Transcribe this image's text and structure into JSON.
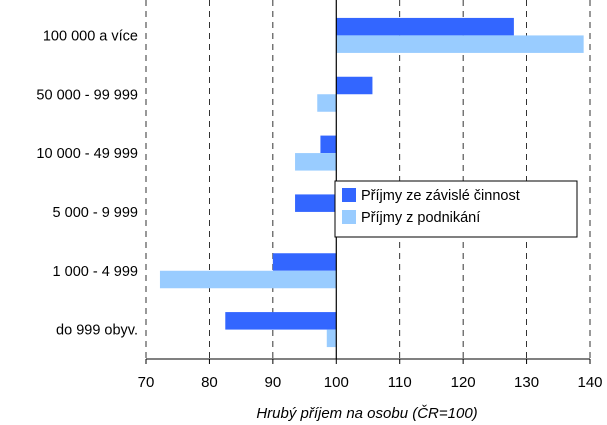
{
  "chart_data": {
    "type": "bar",
    "orientation": "horizontal",
    "categories": [
      "100 000 a více",
      "50 000 - 99 999",
      "10 000 - 49 999",
      "5 000 - 9 999",
      "1 000 - 4 999",
      "do 999 obyv."
    ],
    "series": [
      {
        "name": "Příjmy ze závislé činnost",
        "color": "#3366ff",
        "values": [
          128,
          105.7,
          97.5,
          93.5,
          90,
          82.5
        ]
      },
      {
        "name": "Příjmy z podnikání",
        "color": "#99ccff",
        "values": [
          139,
          97,
          93.5,
          100,
          72.2,
          98.5
        ]
      }
    ],
    "baseline": 100,
    "xlim": [
      70,
      140
    ],
    "xticks": [
      "70",
      "80",
      "90",
      "100",
      "110",
      "120",
      "130",
      "140"
    ],
    "xlabel": "Hrubý příjem na osobu (ČR=100)",
    "grid": "vertical dashed",
    "legend_position": "right"
  }
}
